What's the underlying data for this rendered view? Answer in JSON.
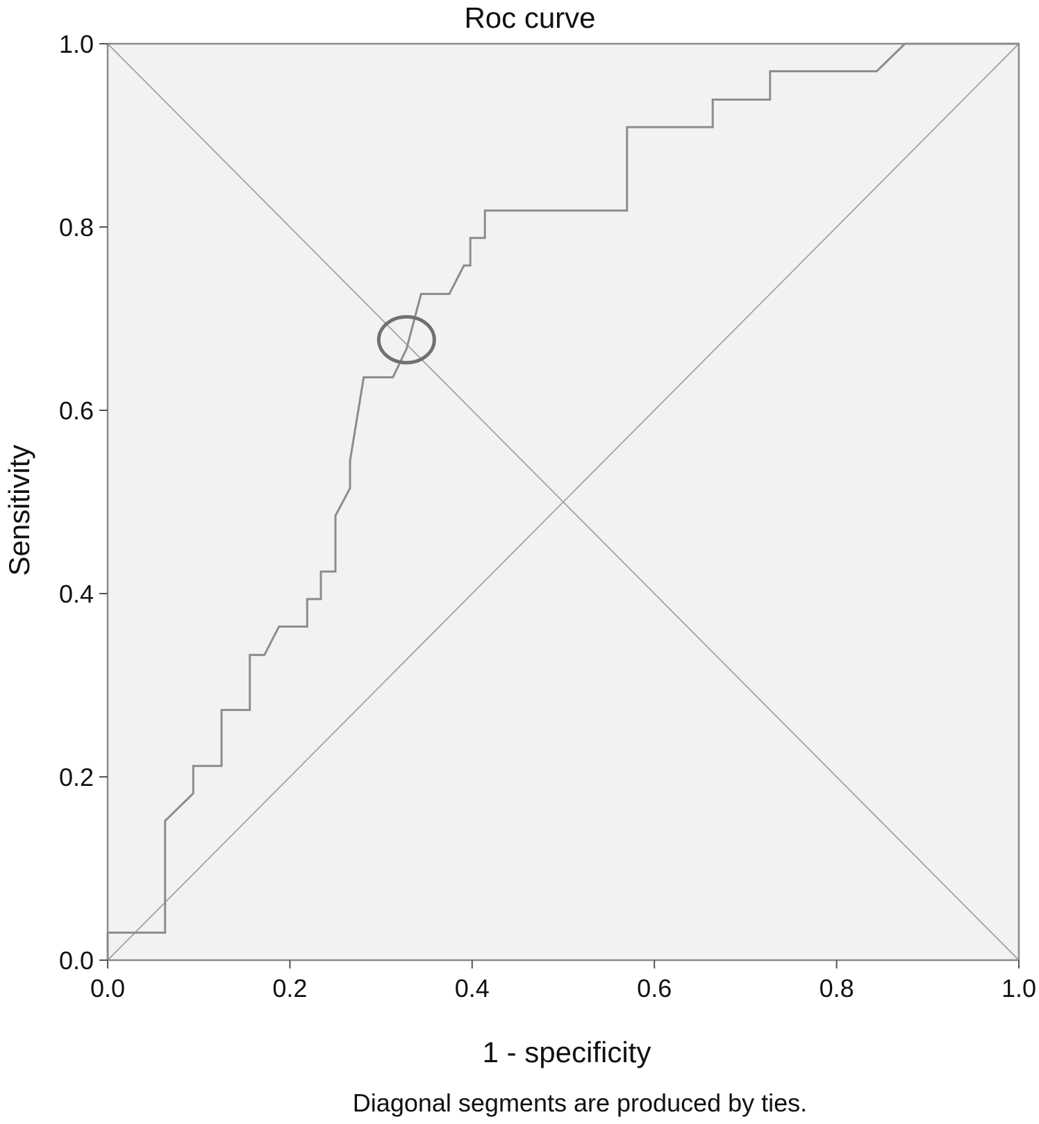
{
  "chart_data": {
    "type": "line",
    "title": "Roc curve",
    "xlabel": "1 - specificity",
    "ylabel": "Sensitivity",
    "footnote": "Diagonal segments are produced by ties.",
    "xlim": [
      0,
      1
    ],
    "ylim": [
      0,
      1
    ],
    "x_ticks": [
      "0.0",
      "0.2",
      "0.4",
      "0.6",
      "0.8",
      "1.0"
    ],
    "y_ticks": [
      "0.0",
      "0.2",
      "0.4",
      "0.6",
      "0.8",
      "1.0"
    ],
    "grid": false,
    "legend": "none",
    "series": [
      {
        "x": [
          0.0,
          0.0,
          0.063,
          0.063,
          0.094,
          0.094,
          0.125,
          0.125,
          0.156,
          0.156,
          0.172,
          0.188,
          0.219,
          0.219,
          0.234,
          0.234,
          0.25,
          0.25,
          0.266,
          0.266,
          0.281,
          0.313,
          0.328,
          0.344,
          0.375,
          0.391,
          0.398,
          0.398,
          0.414,
          0.414,
          0.57,
          0.57,
          0.664,
          0.664,
          0.727,
          0.727,
          0.844,
          0.875,
          1.0
        ],
        "y": [
          0.0,
          0.03,
          0.03,
          0.152,
          0.182,
          0.212,
          0.212,
          0.273,
          0.273,
          0.333,
          0.333,
          0.364,
          0.364,
          0.394,
          0.394,
          0.424,
          0.424,
          0.485,
          0.515,
          0.545,
          0.636,
          0.636,
          0.667,
          0.727,
          0.727,
          0.758,
          0.758,
          0.788,
          0.788,
          0.818,
          0.818,
          0.909,
          0.909,
          0.939,
          0.939,
          0.97,
          0.97,
          1.0,
          1.0
        ]
      },
      {
        "x": [
          0,
          1
        ],
        "y": [
          0,
          1
        ]
      },
      {
        "x": [
          0,
          1
        ],
        "y": [
          1,
          0
        ]
      }
    ],
    "annotations": [
      {
        "type": "circle",
        "x": 0.328,
        "y": 0.677
      }
    ],
    "colors": {
      "plot_background": "#f1f2f2",
      "frame": "#8a8a8a",
      "roc_line": "#8c8c8c",
      "reference_line": "#9a9a9a",
      "circle": "#707070"
    }
  }
}
